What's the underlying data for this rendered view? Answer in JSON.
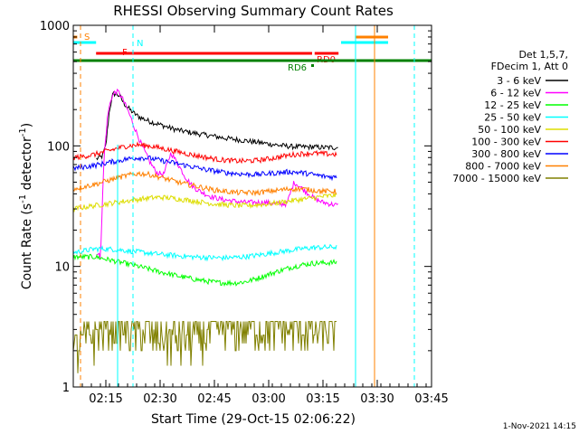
{
  "chart_data": {
    "type": "line",
    "title": "RHESSI Observing Summary Count Rates",
    "xlabel": "Start Time (29-Oct-15 02:06:22)",
    "ylabel_main": "Count Rate (s",
    "ylabel_sup1": "-1",
    "ylabel_mid": " detector",
    "ylabel_sup2": "-1",
    "ylabel_end": ")",
    "footer": "1-Nov-2021 14:15",
    "y_scale": "log",
    "ylim": [
      1,
      1000
    ],
    "xlim_minutes": [
      0,
      99
    ],
    "x_ticks": [
      {
        "label": "02:15",
        "t": 9
      },
      {
        "label": "02:30",
        "t": 24
      },
      {
        "label": "02:45",
        "t": 39
      },
      {
        "label": "03:00",
        "t": 54
      },
      {
        "label": "03:15",
        "t": 69
      },
      {
        "label": "03:30",
        "t": 84
      },
      {
        "label": "03:45",
        "t": 99
      }
    ],
    "y_ticks": [
      {
        "label": "1",
        "v": 1
      },
      {
        "label": "10",
        "v": 10
      },
      {
        "label": "100",
        "v": 100
      },
      {
        "label": "1000",
        "v": 1000
      }
    ],
    "legend_header": [
      "Det 1,5,7,",
      "FDecim 1, Att 0"
    ],
    "legend_placement": "right",
    "series": [
      {
        "name": "3 - 6 keV",
        "color": "#000000",
        "points": [
          [
            6.4,
            78
          ],
          [
            8,
            82
          ],
          [
            9,
            100
          ],
          [
            10,
            200
          ],
          [
            11,
            270
          ],
          [
            12,
            270
          ],
          [
            13,
            255
          ],
          [
            14,
            225
          ],
          [
            16,
            195
          ],
          [
            18,
            175
          ],
          [
            21,
            160
          ],
          [
            24,
            150
          ],
          [
            27,
            140
          ],
          [
            30,
            133
          ],
          [
            33,
            128
          ],
          [
            36,
            124
          ],
          [
            39,
            120
          ],
          [
            42,
            116
          ],
          [
            45,
            113
          ],
          [
            48,
            110
          ],
          [
            51,
            107
          ],
          [
            54,
            104
          ],
          [
            57,
            101
          ],
          [
            60,
            99
          ],
          [
            63,
            98
          ],
          [
            66,
            98
          ],
          [
            69,
            97
          ],
          [
            73.2,
            97
          ]
        ]
      },
      {
        "name": "6 - 12 keV",
        "color": "#ff00ff",
        "points": [
          [
            6.4,
            13
          ],
          [
            7.5,
            12
          ],
          [
            8.5,
            80
          ],
          [
            9.5,
            180
          ],
          [
            10.5,
            250
          ],
          [
            11.5,
            280
          ],
          [
            12.5,
            280
          ],
          [
            13.5,
            250
          ],
          [
            15,
            200
          ],
          [
            17,
            140
          ],
          [
            19,
            100
          ],
          [
            21,
            75
          ],
          [
            23,
            60
          ],
          [
            25,
            58
          ],
          [
            27,
            88
          ],
          [
            29,
            70
          ],
          [
            31,
            55
          ],
          [
            33,
            46
          ],
          [
            35,
            42
          ],
          [
            38,
            38
          ],
          [
            41,
            36
          ],
          [
            44,
            35
          ],
          [
            47,
            34
          ],
          [
            50,
            34
          ],
          [
            53,
            34
          ],
          [
            56,
            33
          ],
          [
            59,
            33
          ],
          [
            61,
            50
          ],
          [
            63,
            45
          ],
          [
            65,
            40
          ],
          [
            67,
            36
          ],
          [
            69,
            34
          ],
          [
            73.2,
            32
          ]
        ]
      },
      {
        "name": "12 - 25 keV",
        "color": "#00ff00",
        "points": [
          [
            0,
            12
          ],
          [
            3,
            12
          ],
          [
            6,
            12
          ],
          [
            9,
            11.5
          ],
          [
            12,
            11
          ],
          [
            15,
            10.5
          ],
          [
            18,
            10
          ],
          [
            21,
            9.5
          ],
          [
            24,
            9
          ],
          [
            27,
            8.6
          ],
          [
            30,
            8.2
          ],
          [
            33,
            7.9
          ],
          [
            36,
            7.6
          ],
          [
            39,
            7.4
          ],
          [
            42,
            7.3
          ],
          [
            45,
            7.3
          ],
          [
            48,
            7.5
          ],
          [
            51,
            8
          ],
          [
            54,
            8.6
          ],
          [
            57,
            9.2
          ],
          [
            60,
            9.8
          ],
          [
            63,
            10.3
          ],
          [
            66,
            10.6
          ],
          [
            69,
            10.7
          ],
          [
            72.8,
            10.8
          ]
        ]
      },
      {
        "name": "25 - 50 keV",
        "color": "#00ffff",
        "points": [
          [
            0,
            13
          ],
          [
            3,
            13.5
          ],
          [
            6,
            14
          ],
          [
            9,
            14
          ],
          [
            12,
            13.8
          ],
          [
            15,
            13.5
          ],
          [
            18,
            13.2
          ],
          [
            21,
            12.9
          ],
          [
            24,
            12.6
          ],
          [
            27,
            12.4
          ],
          [
            30,
            12.2
          ],
          [
            33,
            12
          ],
          [
            36,
            11.9
          ],
          [
            39,
            11.8
          ],
          [
            42,
            11.8
          ],
          [
            45,
            11.9
          ],
          [
            48,
            12.1
          ],
          [
            51,
            12.4
          ],
          [
            54,
            12.8
          ],
          [
            57,
            13.2
          ],
          [
            60,
            13.6
          ],
          [
            63,
            14
          ],
          [
            66,
            14.3
          ],
          [
            69,
            14.4
          ],
          [
            72.8,
            14.5
          ]
        ]
      },
      {
        "name": "50 - 100 keV",
        "color": "#dddd00",
        "points": [
          [
            0,
            30
          ],
          [
            3,
            31
          ],
          [
            6,
            32
          ],
          [
            9,
            33
          ],
          [
            12,
            34
          ],
          [
            15,
            35
          ],
          [
            18,
            36
          ],
          [
            21,
            37
          ],
          [
            24,
            37.5
          ],
          [
            27,
            37
          ],
          [
            30,
            36
          ],
          [
            33,
            35
          ],
          [
            36,
            34
          ],
          [
            39,
            33
          ],
          [
            42,
            32.5
          ],
          [
            45,
            32
          ],
          [
            48,
            32
          ],
          [
            51,
            32.5
          ],
          [
            54,
            33
          ],
          [
            57,
            34
          ],
          [
            60,
            35
          ],
          [
            63,
            36
          ],
          [
            66,
            37
          ],
          [
            69,
            38
          ],
          [
            72.8,
            39
          ]
        ]
      },
      {
        "name": "100 - 300 keV",
        "color": "#ff0000",
        "points": [
          [
            0,
            80
          ],
          [
            3,
            82
          ],
          [
            6,
            85
          ],
          [
            9,
            90
          ],
          [
            12,
            95
          ],
          [
            15,
            100
          ],
          [
            18,
            102
          ],
          [
            21,
            100
          ],
          [
            24,
            96
          ],
          [
            27,
            92
          ],
          [
            30,
            88
          ],
          [
            33,
            84
          ],
          [
            36,
            81
          ],
          [
            39,
            78
          ],
          [
            42,
            76
          ],
          [
            45,
            75
          ],
          [
            48,
            75
          ],
          [
            51,
            76
          ],
          [
            54,
            78
          ],
          [
            57,
            81
          ],
          [
            60,
            84
          ],
          [
            63,
            86
          ],
          [
            66,
            87
          ],
          [
            69,
            86
          ],
          [
            72.8,
            85
          ]
        ]
      },
      {
        "name": "300 - 800 keV",
        "color": "#0000ff",
        "points": [
          [
            0,
            65
          ],
          [
            3,
            67
          ],
          [
            6,
            69
          ],
          [
            9,
            72
          ],
          [
            12,
            75
          ],
          [
            15,
            78
          ],
          [
            18,
            80
          ],
          [
            21,
            79
          ],
          [
            24,
            76
          ],
          [
            27,
            73
          ],
          [
            30,
            70
          ],
          [
            33,
            67
          ],
          [
            36,
            64
          ],
          [
            39,
            62
          ],
          [
            42,
            60
          ],
          [
            45,
            59
          ],
          [
            48,
            58
          ],
          [
            51,
            58
          ],
          [
            54,
            59
          ],
          [
            57,
            60
          ],
          [
            60,
            61
          ],
          [
            63,
            60
          ],
          [
            66,
            58
          ],
          [
            69,
            56
          ],
          [
            72.8,
            55
          ]
        ]
      },
      {
        "name": "800 - 7000 keV",
        "color": "#ff8000",
        "points": [
          [
            0,
            44
          ],
          [
            3,
            46
          ],
          [
            6,
            48
          ],
          [
            9,
            51
          ],
          [
            12,
            54
          ],
          [
            15,
            57
          ],
          [
            18,
            59
          ],
          [
            21,
            58
          ],
          [
            24,
            55
          ],
          [
            27,
            52
          ],
          [
            30,
            49
          ],
          [
            33,
            47
          ],
          [
            36,
            45
          ],
          [
            39,
            43
          ],
          [
            42,
            42
          ],
          [
            45,
            41
          ],
          [
            48,
            41
          ],
          [
            51,
            41
          ],
          [
            54,
            42
          ],
          [
            57,
            43
          ],
          [
            60,
            44
          ],
          [
            63,
            44
          ],
          [
            66,
            43
          ],
          [
            69,
            42
          ],
          [
            72.8,
            42
          ]
        ]
      },
      {
        "name": "7000 - 15000 keV",
        "color": "#808000",
        "points": [
          [
            0,
            1.8
          ],
          [
            2,
            2.3
          ],
          [
            4,
            2.7
          ],
          [
            6,
            2.9
          ],
          [
            8,
            3.2
          ],
          [
            10,
            3.5
          ],
          [
            12,
            3.5
          ],
          [
            14,
            3.3
          ],
          [
            16,
            3.1
          ],
          [
            18,
            2.9
          ],
          [
            20,
            2.8
          ],
          [
            22,
            2.7
          ],
          [
            24,
            2.7
          ],
          [
            26,
            2.6
          ],
          [
            28,
            2.6
          ],
          [
            30,
            2.6
          ],
          [
            32,
            2.6
          ],
          [
            34,
            2.7
          ],
          [
            36,
            2.8
          ],
          [
            38,
            2.9
          ],
          [
            40,
            3
          ],
          [
            42,
            3.1
          ],
          [
            44,
            3.2
          ],
          [
            46,
            3.3
          ],
          [
            48,
            3.3
          ],
          [
            50,
            3.3
          ],
          [
            52,
            3.2
          ],
          [
            54,
            3.2
          ],
          [
            56,
            3.1
          ],
          [
            58,
            3.1
          ],
          [
            60,
            3
          ],
          [
            62,
            3
          ],
          [
            64,
            3
          ],
          [
            66,
            3
          ],
          [
            68,
            3
          ],
          [
            70,
            3
          ],
          [
            72.8,
            3
          ]
        ]
      }
    ],
    "flags": [
      {
        "label": "S",
        "color": "#ff8000",
        "t_start": 0,
        "t_end": 1.1
      },
      {
        "label": "N",
        "color": "#00ffff",
        "t_start": 0,
        "t_end": 6.3
      },
      {
        "label": "F",
        "color": "#ff0000",
        "t_start": 6.3,
        "t_end": 66
      },
      {
        "label": "RD0",
        "color": "#ff0000",
        "t_start": 66.7,
        "t_end": 73.3
      },
      {
        "label": "RD6",
        "color": "#008000",
        "t_start": 0,
        "t_end": 99
      },
      {
        "label": "",
        "color": "#00ffff",
        "t_start": 74,
        "t_end": 87
      },
      {
        "label": "",
        "color": "#ff8000",
        "t_start": 78,
        "t_end": 87
      }
    ]
  }
}
